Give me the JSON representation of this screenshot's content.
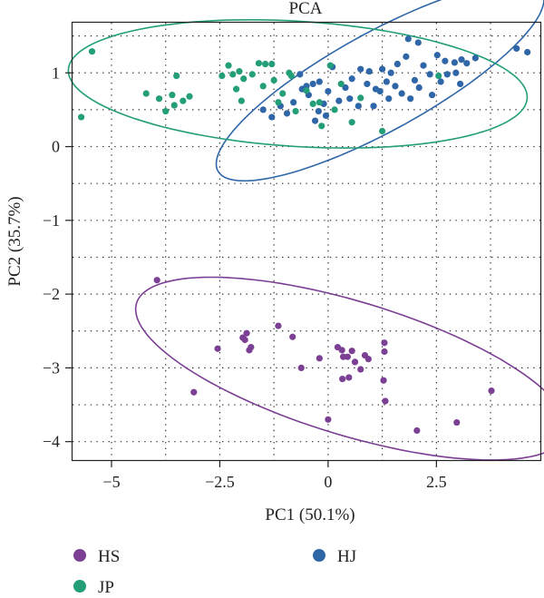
{
  "chart_data": {
    "type": "scatter",
    "title": "PCA",
    "xlabel": "PC1 (50.1%)",
    "ylabel": "PC2 (35.7%)",
    "xlim": [
      -5.9,
      4.9
    ],
    "ylim": [
      -4.25,
      1.68
    ],
    "xticks": [
      -5,
      -2.5,
      0,
      2.5
    ],
    "xtick_labels": [
      "−5",
      "−2.5",
      "0",
      "2.5"
    ],
    "yticks": [
      1,
      0,
      -1,
      -2,
      -3,
      -4
    ],
    "ytick_labels": [
      "1",
      "0",
      "−1",
      "−2",
      "−3",
      "−4"
    ],
    "grid": true,
    "legend": {
      "position": "bottom"
    },
    "series": [
      {
        "name": "HS",
        "color": "#7b3f93",
        "ellipse": {
          "cx": 0.54,
          "cy": -3.01,
          "rx": 5.05,
          "ry": 0.93,
          "angle_deg": -9.5
        },
        "points": [
          [
            -3.95,
            -1.81
          ],
          [
            -3.1,
            -3.33
          ],
          [
            -2.55,
            -2.74
          ],
          [
            -1.97,
            -2.59
          ],
          [
            -1.92,
            -2.62
          ],
          [
            -1.88,
            -2.53
          ],
          [
            -1.82,
            -2.76
          ],
          [
            -1.78,
            -2.72
          ],
          [
            -1.15,
            -2.43
          ],
          [
            -0.82,
            -2.58
          ],
          [
            -0.62,
            -3.0
          ],
          [
            -0.2,
            -2.87
          ],
          [
            0.0,
            -3.7
          ],
          [
            0.22,
            -2.72
          ],
          [
            0.32,
            -2.76
          ],
          [
            0.35,
            -2.85
          ],
          [
            0.33,
            -3.15
          ],
          [
            0.45,
            -2.85
          ],
          [
            0.48,
            -3.13
          ],
          [
            0.55,
            -2.77
          ],
          [
            0.62,
            -2.92
          ],
          [
            0.75,
            -3.02
          ],
          [
            0.85,
            -2.83
          ],
          [
            0.93,
            -2.88
          ],
          [
            1.3,
            -2.66
          ],
          [
            1.3,
            -2.78
          ],
          [
            1.28,
            -3.17
          ],
          [
            1.32,
            -3.45
          ],
          [
            2.05,
            -3.85
          ],
          [
            2.97,
            -3.74
          ],
          [
            3.77,
            -3.31
          ]
        ]
      },
      {
        "name": "HJ",
        "color": "#2f66a8",
        "ellipse": {
          "cx": 1.2,
          "cy": 0.88,
          "rx": 3.95,
          "ry": 0.72,
          "angle_deg": 17
        },
        "points": [
          [
            4.35,
            1.33
          ],
          [
            4.6,
            1.28
          ],
          [
            1.85,
            1.46
          ],
          [
            2.08,
            1.41
          ],
          [
            2.52,
            1.24
          ],
          [
            2.7,
            1.16
          ],
          [
            2.92,
            1.14
          ],
          [
            3.08,
            1.18
          ],
          [
            3.2,
            1.13
          ],
          [
            3.4,
            1.2
          ],
          [
            2.95,
            1.0
          ],
          [
            3.05,
            0.85
          ],
          [
            2.2,
            1.1
          ],
          [
            2.35,
            0.98
          ],
          [
            2.6,
            0.88
          ],
          [
            2.75,
            0.98
          ],
          [
            2.0,
            0.9
          ],
          [
            2.1,
            0.8
          ],
          [
            2.4,
            0.7
          ],
          [
            1.8,
            1.22
          ],
          [
            1.6,
            1.12
          ],
          [
            1.45,
            1.0
          ],
          [
            1.25,
            1.05
          ],
          [
            1.35,
            0.88
          ],
          [
            1.55,
            0.82
          ],
          [
            1.7,
            0.72
          ],
          [
            1.9,
            0.65
          ],
          [
            1.1,
            0.78
          ],
          [
            0.9,
            0.85
          ],
          [
            0.75,
            1.05
          ],
          [
            0.55,
            0.92
          ],
          [
            0.4,
            0.8
          ],
          [
            0.25,
            0.62
          ],
          [
            0.1,
            1.08
          ],
          [
            0.0,
            0.75
          ],
          [
            -0.1,
            0.58
          ],
          [
            -0.22,
            0.48
          ],
          [
            -0.35,
            0.85
          ],
          [
            -0.45,
            0.7
          ],
          [
            -0.2,
            0.88
          ],
          [
            -0.5,
            0.82
          ],
          [
            -0.6,
            0.78
          ],
          [
            -0.65,
            0.98
          ],
          [
            -0.8,
            0.6
          ],
          [
            -0.95,
            0.45
          ],
          [
            -1.1,
            0.55
          ],
          [
            -1.3,
            0.4
          ],
          [
            -1.5,
            0.5
          ],
          [
            -0.3,
            0.35
          ],
          [
            -0.05,
            0.42
          ],
          [
            0.5,
            0.65
          ],
          [
            0.7,
            0.55
          ],
          [
            1.05,
            0.55
          ],
          [
            1.4,
            0.65
          ],
          [
            1.2,
            0.75
          ],
          [
            0.95,
            1.02
          ]
        ]
      },
      {
        "name": "JP",
        "color": "#239e79",
        "ellipse": {
          "cx": -0.7,
          "cy": 0.85,
          "rx": 5.3,
          "ry": 0.85,
          "angle_deg": -2
        },
        "points": [
          [
            -5.45,
            1.29
          ],
          [
            -5.7,
            0.4
          ],
          [
            -4.2,
            0.72
          ],
          [
            -3.5,
            0.96
          ],
          [
            -3.35,
            0.62
          ],
          [
            -3.6,
            0.7
          ],
          [
            -3.9,
            0.65
          ],
          [
            -3.75,
            0.48
          ],
          [
            -3.55,
            0.56
          ],
          [
            -3.2,
            0.68
          ],
          [
            -2.45,
            0.96
          ],
          [
            -2.3,
            1.1
          ],
          [
            -2.2,
            0.98
          ],
          [
            -2.05,
            1.02
          ],
          [
            -2.12,
            0.78
          ],
          [
            -2.0,
            0.62
          ],
          [
            -1.95,
            0.92
          ],
          [
            -1.75,
            0.98
          ],
          [
            -1.6,
            1.13
          ],
          [
            -1.45,
            1.12
          ],
          [
            -1.3,
            1.12
          ],
          [
            -1.5,
            0.82
          ],
          [
            -1.15,
            0.6
          ],
          [
            -1.05,
            0.72
          ],
          [
            -0.85,
            0.96
          ],
          [
            -0.75,
            0.48
          ],
          [
            -0.5,
            0.76
          ],
          [
            -0.35,
            0.58
          ],
          [
            -0.2,
            0.6
          ],
          [
            0.05,
            1.1
          ],
          [
            -0.15,
            0.28
          ],
          [
            0.55,
            0.33
          ],
          [
            0.75,
            0.66
          ],
          [
            1.25,
            0.21
          ],
          [
            2.55,
            0.96
          ],
          [
            -0.9,
            1.0
          ],
          [
            -1.25,
            0.9
          ],
          [
            0.3,
            0.85
          ],
          [
            0.15,
            0.5
          ]
        ]
      }
    ]
  }
}
